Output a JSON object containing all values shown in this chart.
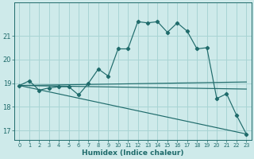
{
  "xlabel": "Humidex (Indice chaleur)",
  "background_color": "#ceeaea",
  "grid_color": "#a8d4d4",
  "line_color": "#1f6b6b",
  "line1_x": [
    0,
    1,
    2,
    3,
    4,
    5,
    6,
    7,
    8,
    9,
    10,
    11,
    12,
    13,
    14,
    15,
    16,
    17,
    18,
    19,
    20,
    21,
    22,
    23
  ],
  "line1_y": [
    18.9,
    19.1,
    18.7,
    18.8,
    18.85,
    18.85,
    18.5,
    19.0,
    19.6,
    19.3,
    20.45,
    20.45,
    21.6,
    21.55,
    21.6,
    21.15,
    21.55,
    21.2,
    20.45,
    20.5,
    18.35,
    18.55,
    17.65,
    16.85
  ],
  "line2_x": [
    0,
    23
  ],
  "line2_y": [
    18.9,
    16.85
  ],
  "line3_x": [
    0,
    23
  ],
  "line3_y": [
    18.9,
    18.75
  ],
  "line4_x": [
    0,
    23
  ],
  "line4_y": [
    18.9,
    19.05
  ],
  "ylim": [
    16.6,
    22.4
  ],
  "xlim": [
    -0.5,
    23.5
  ],
  "yticks": [
    17,
    18,
    19,
    20,
    21
  ],
  "xticks": [
    0,
    1,
    2,
    3,
    4,
    5,
    6,
    7,
    8,
    9,
    10,
    11,
    12,
    13,
    14,
    15,
    16,
    17,
    18,
    19,
    20,
    21,
    22,
    23
  ]
}
